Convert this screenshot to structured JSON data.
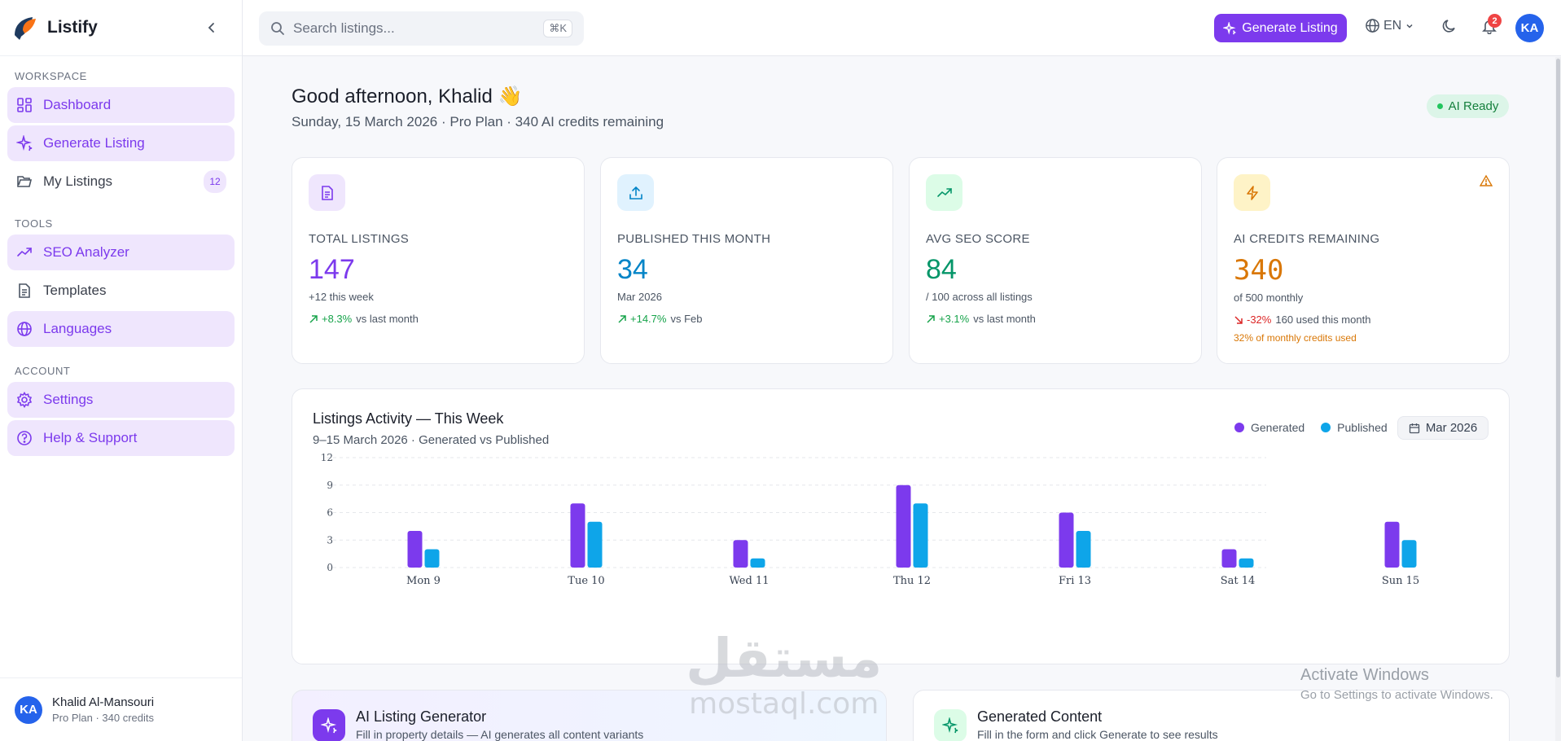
{
  "app": {
    "name": "Listify"
  },
  "sidebar": {
    "sections": [
      {
        "label": "WORKSPACE"
      },
      {
        "label": "TOOLS"
      },
      {
        "label": "ACCOUNT"
      }
    ],
    "items": [
      {
        "label": "Dashboard",
        "icon": "dashboard-icon"
      },
      {
        "label": "Generate Listing",
        "icon": "sparkles-icon"
      },
      {
        "label": "My Listings",
        "icon": "folder-icon",
        "count": "12"
      },
      {
        "label": "SEO Analyzer",
        "icon": "trending-up-icon"
      },
      {
        "label": "Templates",
        "icon": "file-text-icon"
      },
      {
        "label": "Languages",
        "icon": "globe-icon"
      },
      {
        "label": "Settings",
        "icon": "gear-icon"
      },
      {
        "label": "Help & Support",
        "icon": "help-circle-icon"
      }
    ],
    "user": {
      "initials": "KA",
      "name": "Khalid Al-Mansouri",
      "plan": "Pro Plan · 340 credits"
    }
  },
  "topbar": {
    "search_placeholder": "Search listings...",
    "shortcut": "⌘K",
    "generate_label": "Generate Listing",
    "language": "EN",
    "notifications": "2",
    "avatar_initials": "KA"
  },
  "header": {
    "greeting": "Good afternoon, Khalid 👋",
    "subtitle": "Sunday, 15 March 2026 · Pro Plan · 340 AI credits remaining",
    "status": "AI Ready"
  },
  "stats": [
    {
      "label": "TOTAL LISTINGS",
      "value": "147",
      "sub": "+12 this week",
      "pct": "+8.3%",
      "trend_text": "vs last month",
      "color": "#7c3aed",
      "trend_color": "#16a34a"
    },
    {
      "label": "PUBLISHED THIS MONTH",
      "value": "34",
      "sub": "Mar 2026",
      "pct": "+14.7%",
      "trend_text": "vs Feb",
      "color": "#0284c7",
      "trend_color": "#16a34a"
    },
    {
      "label": "AVG SEO SCORE",
      "value": "84",
      "sub": "/ 100 across all listings",
      "pct": "+3.1%",
      "trend_text": "vs last month",
      "color": "#059669",
      "trend_color": "#16a34a"
    },
    {
      "label": "AI CREDITS REMAINING",
      "value": "340",
      "sub": "of 500 monthly",
      "pct": "-32%",
      "trend_text": "160 used this month",
      "warning": "32% of monthly credits used",
      "color": "#d97706",
      "trend_color": "#dc2626"
    }
  ],
  "chart": {
    "title": "Listings Activity — This Week",
    "subtitle": "9–15 March 2026 · Generated vs Published",
    "month": "Mar 2026"
  },
  "chart_data": {
    "type": "bar",
    "categories": [
      "Mon 9",
      "Tue 10",
      "Wed 11",
      "Thu 12",
      "Fri 13",
      "Sat 14",
      "Sun 15"
    ],
    "series": [
      {
        "name": "Generated",
        "values": [
          4,
          7,
          3,
          9,
          6,
          2,
          5
        ],
        "color": "#7c3aed"
      },
      {
        "name": "Published",
        "values": [
          2,
          5,
          1,
          7,
          4,
          1,
          3
        ],
        "color": "#0ea5e9"
      }
    ],
    "yticks": [
      0,
      3,
      6,
      9,
      12
    ],
    "ylim": [
      0,
      12
    ],
    "grid": true,
    "legend": "top-right"
  },
  "panels": [
    {
      "title": "AI Listing Generator",
      "sub": "Fill in property details — AI generates all content variants"
    },
    {
      "title": "Generated Content",
      "sub": "Fill in the form and click Generate to see results"
    }
  ],
  "watermark": {
    "ar": "مستقل",
    "en": "mostaql.com"
  },
  "os_notice": {
    "title": "Activate Windows",
    "sub": "Go to Settings to activate Windows."
  }
}
